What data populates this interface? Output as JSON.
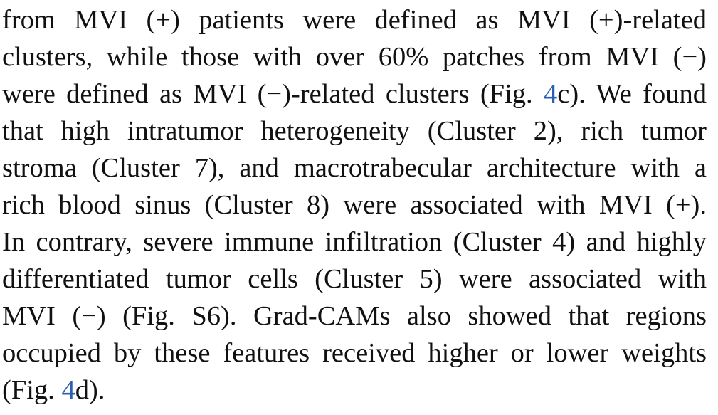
{
  "paragraph": {
    "lines": [
      {
        "segments": [
          {
            "text": "from MVI (+) patients were defined as MVI (+)-related"
          }
        ]
      },
      {
        "segments": [
          {
            "text": "clusters, while those with over 60% patches from MVI (−)"
          }
        ]
      },
      {
        "segments": [
          {
            "text": "were defined as MVI (−)-related clusters (Fig. "
          },
          {
            "text": "4",
            "link": true
          },
          {
            "text": "c). We found"
          }
        ]
      },
      {
        "segments": [
          {
            "text": "that high intratumor heterogeneity (Cluster 2), rich tumor"
          }
        ]
      },
      {
        "segments": [
          {
            "text": "stroma (Cluster 7), and macrotrabecular architecture with a"
          }
        ]
      },
      {
        "segments": [
          {
            "text": "rich blood sinus (Cluster 8) were associated with MVI (+)."
          }
        ]
      },
      {
        "segments": [
          {
            "text": "In contrary, severe immune infiltration (Cluster 4) and highly"
          }
        ]
      },
      {
        "segments": [
          {
            "text": "differentiated tumor cells (Cluster 5) were associated with"
          }
        ]
      },
      {
        "segments": [
          {
            "text": "MVI (−) (Fig. S6). Grad-CAMs also showed that regions"
          }
        ]
      },
      {
        "segments": [
          {
            "text": "occupied by these features received higher or lower weights"
          }
        ]
      },
      {
        "segments": [
          {
            "text": "(Fig. "
          },
          {
            "text": "4",
            "link": true
          },
          {
            "text": "d)."
          }
        ]
      }
    ]
  },
  "colors": {
    "text": "#111111",
    "link": "#2f5fb3",
    "background": "#ffffff"
  }
}
